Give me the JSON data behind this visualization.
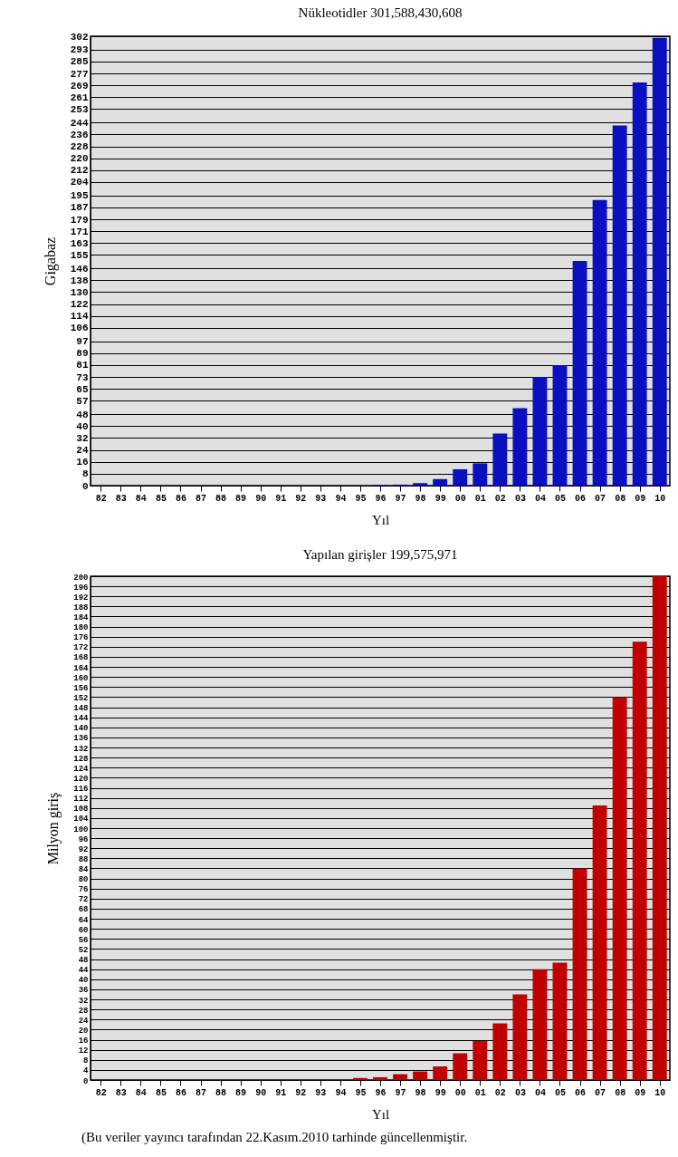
{
  "chart_data": [
    {
      "type": "bar",
      "title": "Nükleotidler 301,588,430,608",
      "xlabel": "Yıl",
      "ylabel": "Gigabaz",
      "categories": [
        "82",
        "83",
        "84",
        "85",
        "86",
        "87",
        "88",
        "89",
        "90",
        "91",
        "92",
        "93",
        "94",
        "95",
        "96",
        "97",
        "98",
        "99",
        "00",
        "01",
        "02",
        "03",
        "04",
        "05",
        "06",
        "07",
        "08",
        "09",
        "10"
      ],
      "values": [
        0,
        0,
        0,
        0,
        0,
        0,
        0,
        0,
        0,
        0,
        0,
        0,
        0,
        0,
        0.4,
        0.7,
        1.7,
        4.4,
        11,
        15,
        35,
        52,
        73,
        81,
        151,
        192,
        242,
        271,
        301
      ],
      "color": "#0a0fc0",
      "ylim": [
        0,
        302
      ],
      "yticks": [
        0,
        8,
        16,
        24,
        32,
        40,
        48,
        57,
        65,
        73,
        81,
        89,
        97,
        106,
        114,
        122,
        130,
        138,
        146,
        155,
        163,
        171,
        179,
        187,
        195,
        204,
        212,
        220,
        228,
        236,
        244,
        253,
        261,
        269,
        277,
        285,
        293,
        302
      ],
      "grid": "y"
    },
    {
      "type": "bar",
      "title": "Yapılan girişler   199,575,971",
      "xlabel": "Yıl",
      "ylabel": "Milyon giriş",
      "categories": [
        "82",
        "83",
        "84",
        "85",
        "86",
        "87",
        "88",
        "89",
        "90",
        "91",
        "92",
        "93",
        "94",
        "95",
        "96",
        "97",
        "98",
        "99",
        "00",
        "01",
        "02",
        "03",
        "04",
        "05",
        "06",
        "07",
        "08",
        "09",
        "10"
      ],
      "values": [
        0,
        0,
        0,
        0,
        0,
        0,
        0,
        0,
        0,
        0,
        0,
        0,
        0,
        0.8,
        1.1,
        2.3,
        3.4,
        5.4,
        10.6,
        15.5,
        22.5,
        34,
        44,
        46.6,
        84,
        109,
        152,
        174,
        200
      ],
      "color": "#c00000",
      "ylim": [
        0,
        200
      ],
      "yticks": [
        0,
        4,
        8,
        12,
        16,
        20,
        24,
        28,
        32,
        36,
        40,
        44,
        48,
        52,
        56,
        60,
        64,
        68,
        72,
        76,
        80,
        84,
        88,
        92,
        96,
        100,
        104,
        108,
        112,
        116,
        120,
        124,
        128,
        132,
        136,
        140,
        144,
        148,
        152,
        156,
        160,
        164,
        168,
        172,
        176,
        180,
        184,
        188,
        192,
        196,
        200
      ],
      "grid": "y",
      "annotations": [
        "(Bu veriler yayıncı tarafından 22.Kasım.2010 tarhinde güncellenmiştir."
      ]
    }
  ]
}
